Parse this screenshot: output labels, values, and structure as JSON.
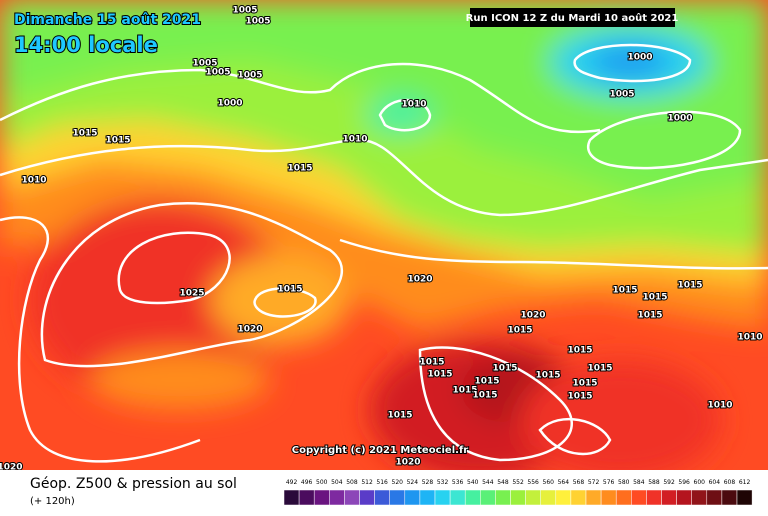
{
  "header": {
    "date": "Dimanche 15 août 2021",
    "time": "14:00 locale",
    "run": "Run ICON 12 Z du Mardi 10 août 2021"
  },
  "map": {
    "isobar_labels": [
      "1005",
      "1005",
      "1005",
      "1005",
      "1005",
      "1000",
      "1015",
      "1015",
      "1010",
      "1010",
      "1010",
      "1000",
      "1005",
      "1000",
      "1015",
      "1020",
      "1025",
      "1015",
      "1020",
      "1020",
      "1015",
      "1015",
      "1015",
      "1015",
      "1015",
      "1015",
      "1015",
      "1015",
      "1015",
      "1015",
      "1015",
      "1015",
      "1015",
      "1015",
      "1015",
      "1015",
      "1010",
      "1010",
      "1015",
      "1020",
      "1020"
    ],
    "copyright": "Copyright (c) 2021 Meteociel.fr"
  },
  "footer": {
    "title": "Géop. Z500 & pression au sol",
    "lead": "(+ 120h)"
  },
  "legend": {
    "values": [
      492,
      496,
      500,
      504,
      508,
      512,
      516,
      520,
      524,
      528,
      532,
      536,
      540,
      544,
      548,
      552,
      556,
      560,
      564,
      568,
      572,
      576,
      580,
      584,
      588,
      592,
      596,
      600,
      604,
      608,
      612
    ],
    "colors": [
      "#2a0a3a",
      "#4b0c5e",
      "#6a1480",
      "#7e2aa0",
      "#8c46b8",
      "#5a3cc8",
      "#3c5ad8",
      "#2a78e6",
      "#1e96f0",
      "#1eb4f5",
      "#28d2f0",
      "#3ce6d2",
      "#46f0a0",
      "#5af078",
      "#78f050",
      "#9bf03c",
      "#c3f03c",
      "#e6f03c",
      "#fff03c",
      "#ffd232",
      "#ffaa28",
      "#ff8c1e",
      "#ff6e1e",
      "#ff4b23",
      "#f03228",
      "#d21e23",
      "#b4141e",
      "#911419",
      "#6e0f14",
      "#4b0a0f",
      "#1e0505"
    ]
  }
}
